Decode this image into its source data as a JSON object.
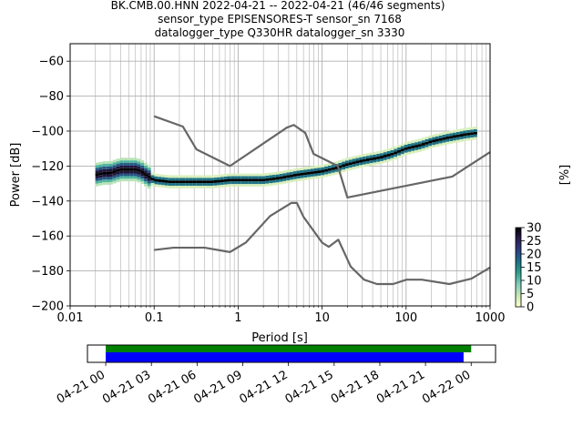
{
  "title": {
    "line1": "BK.CMB.00.HNN   2022-04-21 -- 2022-04-21  (46/46 segments)",
    "line2": "sensor_type EPISENSORES-T sensor_sn 7168",
    "line3": "datalogger_type Q330HR datalogger_sn 3330"
  },
  "chart_data": [
    {
      "type": "heatmap",
      "title": "BK.CMB.00.HNN   2022-04-21 -- 2022-04-21  (46/46 segments)",
      "xlabel": "Period [s]",
      "ylabel": "Power [dB]",
      "xscale": "log",
      "xlim": [
        0.01,
        1000
      ],
      "ylim": [
        -200,
        -50
      ],
      "xticks": [
        0.01,
        0.1,
        1,
        10,
        100,
        1000
      ],
      "xtick_labels": [
        "0.01",
        "0.1",
        "1",
        "10",
        "100",
        "1000"
      ],
      "yticks": [
        -200,
        -180,
        -160,
        -140,
        -120,
        -100,
        -80,
        -60
      ],
      "ytick_labels": [
        "−200",
        "−180",
        "−160",
        "−140",
        "−120",
        "−100",
        "−80",
        "−60"
      ],
      "grid": true,
      "colorbar": {
        "label": "[%]",
        "range": [
          0,
          30
        ],
        "ticks": [
          0,
          5,
          10,
          15,
          20,
          25,
          30
        ],
        "tick_labels": [
          "0",
          "5",
          "10",
          "15",
          "20",
          "25",
          "30"
        ],
        "colormap": [
          "#ffffcc",
          "#c7e9b4",
          "#7fcdbb",
          "#2fa08c",
          "#1d6f86",
          "#2c3f80",
          "#2b1c4f",
          "#000000"
        ]
      },
      "series": [
        {
          "name": "",
          "role": "PSD probability (mode)",
          "x": [
            0.02,
            0.025,
            0.03,
            0.04,
            0.05,
            0.06,
            0.07,
            0.08,
            0.1,
            0.15,
            0.2,
            0.3,
            0.5,
            0.8,
            1,
            1.5,
            2,
            3,
            5,
            7,
            10,
            15,
            20,
            30,
            50,
            70,
            100,
            150,
            200,
            300,
            500,
            700
          ],
          "y": [
            -125,
            -124,
            -124,
            -122,
            -122,
            -122,
            -123,
            -125,
            -128,
            -129,
            -129,
            -129,
            -129,
            -128,
            -128,
            -128,
            -128,
            -127,
            -125,
            -124,
            -123,
            -121,
            -119,
            -117,
            -115,
            -113,
            -110,
            -108,
            -106,
            -104,
            -102,
            -101
          ]
        },
        {
          "name": "",
          "role": "high noise model",
          "x": [
            0.1,
            0.22,
            0.32,
            0.8,
            3.8,
            4.6,
            6.3,
            7.9,
            15.4,
            20,
            354.8,
            1000
          ],
          "y": [
            -91.5,
            -97.4,
            -110.5,
            -120,
            -98,
            -96.5,
            -101,
            -113,
            -120,
            -138,
            -126,
            -112
          ]
        },
        {
          "name": "",
          "role": "low noise model",
          "x": [
            0.1,
            0.17,
            0.4,
            0.8,
            1.24,
            2.4,
            4.3,
            5,
            6,
            10,
            12,
            15.6,
            21.9,
            31.6,
            45,
            70,
            101,
            154,
            328,
            600,
            1000
          ],
          "y": [
            -168,
            -166.7,
            -166.7,
            -169.2,
            -163.7,
            -148.6,
            -141.1,
            -141.1,
            -149,
            -163.8,
            -166.2,
            -162.1,
            -177.5,
            -185,
            -187.5,
            -187.5,
            -185,
            -185,
            -187.5,
            -184.4,
            -178
          ]
        }
      ]
    },
    {
      "type": "timeline",
      "x_tick_labels": [
        "04-21 00",
        "04-21 03",
        "04-21 06",
        "04-21 09",
        "04-21 12",
        "04-21 15",
        "04-21 18",
        "04-21 21",
        "04-22 00"
      ],
      "x_tick_hours": [
        0,
        3,
        6,
        9,
        12,
        15,
        18,
        21,
        24
      ],
      "xlim_hours": [
        -1.2,
        25.6
      ],
      "series": [
        {
          "name": "",
          "color": "#008000",
          "start_hour": 0,
          "end_hour": 24.0
        },
        {
          "name": "",
          "color": "#0000ff",
          "start_hour": 0,
          "end_hour": 23.5
        }
      ]
    }
  ]
}
